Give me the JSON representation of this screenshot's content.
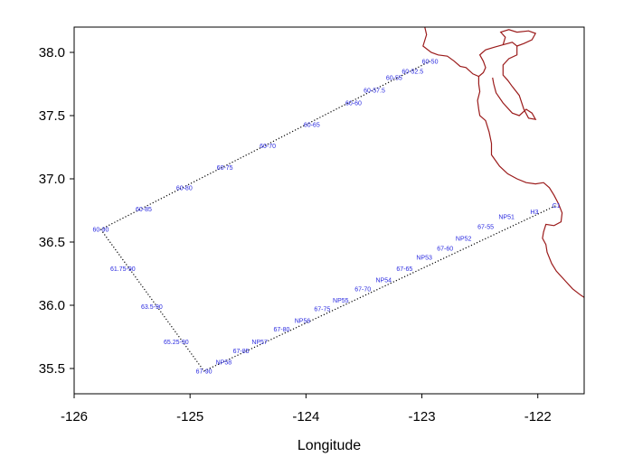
{
  "chart_data": {
    "type": "scatter",
    "xlabel": "Longitude",
    "ylabel": "",
    "title": "",
    "xlim": [
      -126,
      -121.6
    ],
    "ylim": [
      35.3,
      38.2
    ],
    "xticks": [
      {
        "value": -126,
        "label": "-126"
      },
      {
        "value": -125,
        "label": "-125"
      },
      {
        "value": -124,
        "label": "-124"
      },
      {
        "value": -123,
        "label": "-123"
      },
      {
        "value": -122,
        "label": "-122"
      }
    ],
    "yticks": [
      {
        "value": 35.5,
        "label": "35.5"
      },
      {
        "value": 36.0,
        "label": "36.0"
      },
      {
        "value": 36.5,
        "label": "36.5"
      },
      {
        "value": 37.0,
        "label": "37.0"
      },
      {
        "value": 37.5,
        "label": "37.5"
      },
      {
        "value": 38.0,
        "label": "38.0"
      }
    ],
    "colors": {
      "coast": "#9b1b1b",
      "station_label": "#2a2ae0",
      "track": "#000000"
    },
    "stations": [
      {
        "label": "60-50",
        "lon": -122.93,
        "lat": 37.93
      },
      {
        "label": "60-52.5",
        "lon": -123.08,
        "lat": 37.85
      },
      {
        "label": "60-55",
        "lon": -123.24,
        "lat": 37.8
      },
      {
        "label": "60-57.5",
        "lon": -123.41,
        "lat": 37.7
      },
      {
        "label": "60-60",
        "lon": -123.59,
        "lat": 37.6
      },
      {
        "label": "60-65",
        "lon": -123.95,
        "lat": 37.43
      },
      {
        "label": "60-70",
        "lon": -124.33,
        "lat": 37.26
      },
      {
        "label": "60-75",
        "lon": -124.7,
        "lat": 37.09
      },
      {
        "label": "60-80",
        "lon": -125.05,
        "lat": 36.93
      },
      {
        "label": "60-85",
        "lon": -125.4,
        "lat": 36.76
      },
      {
        "label": "60-90",
        "lon": -125.77,
        "lat": 36.6
      },
      {
        "label": "61.75-90",
        "lon": -125.58,
        "lat": 36.29
      },
      {
        "label": "63.5-90",
        "lon": -125.33,
        "lat": 35.99
      },
      {
        "label": "65.25-90",
        "lon": -125.12,
        "lat": 35.71
      },
      {
        "label": "67-90",
        "lon": -124.88,
        "lat": 35.48
      },
      {
        "label": "NP58",
        "lon": -124.71,
        "lat": 35.55
      },
      {
        "label": "67-85",
        "lon": -124.56,
        "lat": 35.64
      },
      {
        "label": "NP57",
        "lon": -124.4,
        "lat": 35.71
      },
      {
        "label": "67-80",
        "lon": -124.21,
        "lat": 35.81
      },
      {
        "label": "NP56",
        "lon": -124.03,
        "lat": 35.88
      },
      {
        "label": "67-75",
        "lon": -123.86,
        "lat": 35.97
      },
      {
        "label": "NP55",
        "lon": -123.7,
        "lat": 36.04
      },
      {
        "label": "67-70",
        "lon": -123.51,
        "lat": 36.13
      },
      {
        "label": "NP54",
        "lon": -123.33,
        "lat": 36.2
      },
      {
        "label": "67-65",
        "lon": -123.15,
        "lat": 36.29
      },
      {
        "label": "NP53",
        "lon": -122.98,
        "lat": 36.38
      },
      {
        "label": "67-60",
        "lon": -122.8,
        "lat": 36.45
      },
      {
        "label": "NP52",
        "lon": -122.64,
        "lat": 36.53
      },
      {
        "label": "67-55",
        "lon": -122.45,
        "lat": 36.62
      },
      {
        "label": "NP51",
        "lon": -122.27,
        "lat": 36.7
      },
      {
        "label": "H3",
        "lon": -122.03,
        "lat": 36.74
      },
      {
        "label": "C1",
        "lon": -121.84,
        "lat": 36.79
      }
    ],
    "track_segments": [
      [
        "60-50",
        "60-90"
      ],
      [
        "60-90",
        "67-90"
      ],
      [
        "67-90",
        "C1"
      ]
    ],
    "coastline": [
      [
        -123.02,
        38.32
      ],
      [
        -122.98,
        38.22
      ],
      [
        -122.96,
        38.14
      ],
      [
        -122.99,
        38.05
      ],
      [
        -122.92,
        38.0
      ],
      [
        -122.86,
        37.98
      ],
      [
        -122.78,
        37.97
      ],
      [
        -122.72,
        37.93
      ],
      [
        -122.67,
        37.89
      ],
      [
        -122.62,
        37.88
      ],
      [
        -122.56,
        37.83
      ],
      [
        -122.51,
        37.81
      ],
      [
        -122.51,
        37.75
      ],
      [
        -122.5,
        37.69
      ],
      [
        -122.52,
        37.62
      ],
      [
        -122.51,
        37.55
      ],
      [
        -122.5,
        37.5
      ],
      [
        -122.45,
        37.46
      ],
      [
        -122.42,
        37.37
      ],
      [
        -122.4,
        37.28
      ],
      [
        -122.4,
        37.19
      ],
      [
        -122.33,
        37.1
      ],
      [
        -122.26,
        37.04
      ],
      [
        -122.18,
        37.0
      ],
      [
        -122.1,
        36.97
      ],
      [
        -122.02,
        36.96
      ],
      [
        -121.95,
        36.97
      ],
      [
        -121.9,
        36.93
      ],
      [
        -121.86,
        36.87
      ],
      [
        -121.82,
        36.8
      ],
      [
        -121.79,
        36.73
      ],
      [
        -121.8,
        36.66
      ],
      [
        -121.86,
        36.63
      ],
      [
        -121.93,
        36.64
      ],
      [
        -121.95,
        36.58
      ],
      [
        -121.96,
        36.53
      ],
      [
        -121.93,
        36.48
      ],
      [
        -121.92,
        36.42
      ],
      [
        -121.88,
        36.33
      ],
      [
        -121.84,
        36.27
      ],
      [
        -121.77,
        36.2
      ],
      [
        -121.7,
        36.13
      ],
      [
        -121.63,
        36.08
      ],
      [
        -121.58,
        36.05
      ]
    ],
    "bay_coastline": [
      [
        -122.51,
        37.81
      ],
      [
        -122.47,
        37.84
      ],
      [
        -122.45,
        37.88
      ],
      [
        -122.47,
        37.93
      ],
      [
        -122.5,
        37.98
      ],
      [
        -122.45,
        38.02
      ],
      [
        -122.38,
        38.04
      ],
      [
        -122.3,
        38.06
      ],
      [
        -122.22,
        38.08
      ],
      [
        -122.18,
        38.05
      ],
      [
        -122.18,
        37.98
      ],
      [
        -122.25,
        37.95
      ],
      [
        -122.3,
        37.9
      ],
      [
        -122.3,
        37.82
      ],
      [
        -122.26,
        37.78
      ],
      [
        -122.22,
        37.73
      ],
      [
        -122.16,
        37.66
      ],
      [
        -122.12,
        37.55
      ],
      [
        -122.08,
        37.48
      ],
      [
        -122.02,
        37.47
      ],
      [
        -122.05,
        37.52
      ],
      [
        -122.1,
        37.55
      ],
      [
        -122.16,
        37.5
      ],
      [
        -122.22,
        37.52
      ],
      [
        -122.3,
        37.6
      ],
      [
        -122.36,
        37.68
      ],
      [
        -122.38,
        37.75
      ],
      [
        -122.39,
        37.8
      ]
    ],
    "bay_north": [
      [
        -122.3,
        38.06
      ],
      [
        -122.28,
        38.12
      ],
      [
        -122.32,
        38.16
      ],
      [
        -122.25,
        38.18
      ],
      [
        -122.18,
        38.16
      ],
      [
        -122.08,
        38.17
      ],
      [
        -122.02,
        38.15
      ],
      [
        -122.05,
        38.1
      ],
      [
        -122.12,
        38.07
      ],
      [
        -122.18,
        38.05
      ]
    ]
  }
}
